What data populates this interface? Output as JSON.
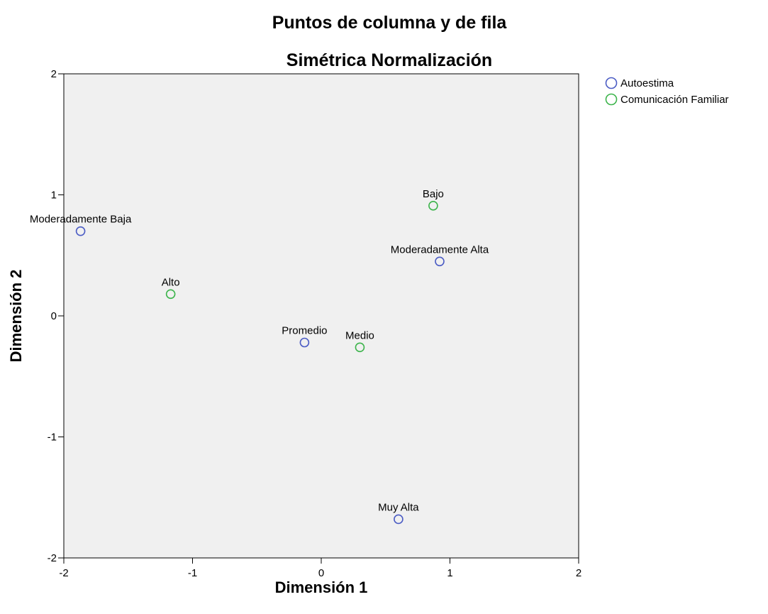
{
  "chart_data": {
    "type": "scatter",
    "title": "Puntos de columna y de fila",
    "subtitle": "Simétrica Normalización",
    "xlabel": "Dimensión 1",
    "ylabel": "Dimensión 2",
    "xlim": [
      -2,
      2
    ],
    "ylim": [
      -2,
      2
    ],
    "xticks": [
      "-2",
      "-1",
      "0",
      "1",
      "2"
    ],
    "yticks": [
      "-2",
      "-1",
      "0",
      "1",
      "2"
    ],
    "grid": false,
    "legend_position": "top-right",
    "plot_background": "#f0f0f0",
    "series": [
      {
        "name": "Autoestima",
        "color": "#4b5cc4",
        "marker": "circle-open",
        "points": [
          {
            "label": "Moderadamente Baja",
            "x": -1.87,
            "y": 0.7
          },
          {
            "label": "Moderadamente Alta",
            "x": 0.92,
            "y": 0.45
          },
          {
            "label": "Promedio",
            "x": -0.13,
            "y": -0.22
          },
          {
            "label": "Muy Alta",
            "x": 0.6,
            "y": -1.68
          }
        ]
      },
      {
        "name": "Comunicación Familiar",
        "color": "#3cb44b",
        "marker": "circle-open",
        "points": [
          {
            "label": "Bajo",
            "x": 0.87,
            "y": 0.91
          },
          {
            "label": "Alto",
            "x": -1.17,
            "y": 0.18
          },
          {
            "label": "Medio",
            "x": 0.3,
            "y": -0.26
          }
        ]
      }
    ]
  }
}
